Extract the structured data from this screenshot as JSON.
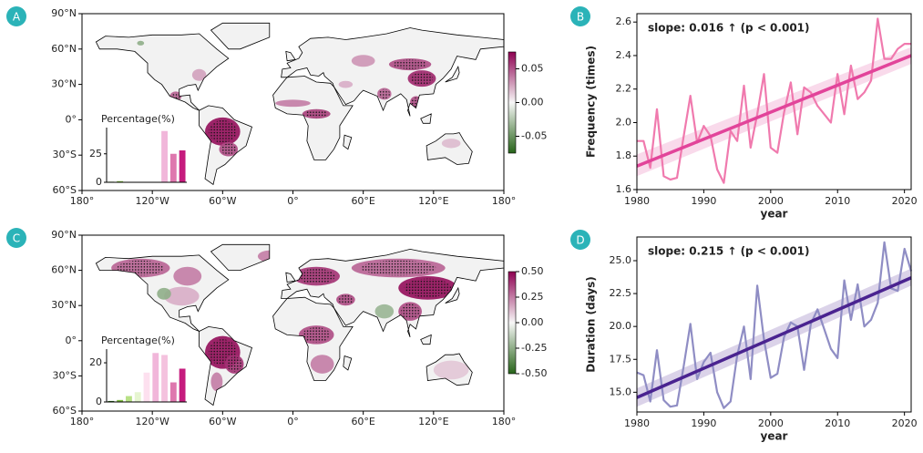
{
  "chart_data": [
    {
      "type": "map",
      "panel": "A",
      "xlim": [
        -180,
        180
      ],
      "ylim": [
        -60,
        90
      ],
      "xticks": [
        {
          "value": -180,
          "label": "180°"
        },
        {
          "value": -120,
          "label": "120°W"
        },
        {
          "value": -60,
          "label": "60°W"
        },
        {
          "value": 0,
          "label": "0°"
        },
        {
          "value": 60,
          "label": "60°E"
        },
        {
          "value": 120,
          "label": "120°E"
        },
        {
          "value": 180,
          "label": "180°"
        }
      ],
      "yticks": [
        {
          "value": 90,
          "label": "90°N"
        },
        {
          "value": 60,
          "label": "60°N"
        },
        {
          "value": 30,
          "label": "30°N"
        },
        {
          "value": 0,
          "label": "0°"
        },
        {
          "value": -30,
          "label": "30°S"
        },
        {
          "value": -60,
          "label": "60°S"
        }
      ],
      "colorbar": {
        "lim": [
          -0.075,
          0.075
        ],
        "colors": [
          "#276419",
          "#f7f7f7",
          "#8e0152"
        ],
        "ticks": [
          {
            "value": 0.05,
            "label": "0.05"
          },
          {
            "value": 0,
            "label": "0.00"
          },
          {
            "value": -0.05,
            "label": "-0.05"
          }
        ]
      }
    },
    {
      "type": "bar",
      "title": "Percentage(%)",
      "values": [
        0.5,
        1,
        0,
        0,
        0,
        0,
        45,
        25,
        28
      ],
      "colors": [
        "#4d9221",
        "#7fbc41",
        "#b8e186",
        "#e6f5d0",
        "#fde0ef",
        "#fde0ef",
        "#f1b6da",
        "#de77ae",
        "#c51b7d"
      ],
      "ylim": [
        0,
        48
      ],
      "yticks": [
        0,
        25
      ]
    },
    {
      "type": "line",
      "panel": "B",
      "xlabel": "year",
      "ylabel": "Frequency (times)",
      "annotation": "slope: 0.016 ↑ (p < 0.001)",
      "x": [
        1980,
        1981,
        1982,
        1983,
        1984,
        1985,
        1986,
        1987,
        1988,
        1989,
        1990,
        1991,
        1992,
        1993,
        1994,
        1995,
        1996,
        1997,
        1998,
        1999,
        2000,
        2001,
        2002,
        2003,
        2004,
        2005,
        2006,
        2007,
        2008,
        2009,
        2010,
        2011,
        2012,
        2013,
        2014,
        2015,
        2016,
        2017,
        2018,
        2019,
        2020,
        2021
      ],
      "values": [
        1.89,
        1.89,
        1.73,
        2.08,
        1.68,
        1.66,
        1.67,
        1.92,
        2.16,
        1.88,
        1.98,
        1.92,
        1.72,
        1.64,
        1.95,
        1.89,
        2.22,
        1.85,
        2.05,
        2.29,
        1.85,
        1.82,
        2.06,
        2.24,
        1.93,
        2.21,
        2.18,
        2.1,
        2.05,
        2.0,
        2.29,
        2.05,
        2.34,
        2.14,
        2.18,
        2.25,
        2.62,
        2.38,
        2.38,
        2.44,
        2.47,
        2.47
      ],
      "color": "#f07aae",
      "trend": {
        "x": [
          1980,
          2021
        ],
        "values": [
          1.74,
          2.4
        ],
        "band_low": [
          1.68,
          2.35
        ],
        "band_high": [
          1.81,
          2.45
        ],
        "color": "#e2449a"
      },
      "xlim": [
        1980,
        2021
      ],
      "ylim": [
        1.6,
        2.65
      ],
      "xticks": [
        1980,
        1990,
        2000,
        2010,
        2020
      ],
      "yticks": [
        {
          "value": 1.6,
          "label": "1.6"
        },
        {
          "value": 1.8,
          "label": "1.8"
        },
        {
          "value": 2.0,
          "label": "2.0"
        },
        {
          "value": 2.2,
          "label": "2.2"
        },
        {
          "value": 2.4,
          "label": "2.4"
        },
        {
          "value": 2.6,
          "label": "2.6"
        }
      ]
    },
    {
      "type": "map",
      "panel": "C",
      "xlim": [
        -180,
        180
      ],
      "ylim": [
        -60,
        90
      ],
      "xticks": [
        {
          "value": -180,
          "label": "180°"
        },
        {
          "value": -120,
          "label": "120°W"
        },
        {
          "value": -60,
          "label": "60°W"
        },
        {
          "value": 0,
          "label": "0°"
        },
        {
          "value": 60,
          "label": "60°E"
        },
        {
          "value": 120,
          "label": "120°E"
        },
        {
          "value": 180,
          "label": "180°"
        }
      ],
      "yticks": [
        {
          "value": 90,
          "label": "90°N"
        },
        {
          "value": 60,
          "label": "60°N"
        },
        {
          "value": 30,
          "label": "30°N"
        },
        {
          "value": 0,
          "label": "0°"
        },
        {
          "value": -30,
          "label": "30°S"
        },
        {
          "value": -60,
          "label": "60°S"
        }
      ],
      "colorbar": {
        "lim": [
          -0.5,
          0.5
        ],
        "colors": [
          "#276419",
          "#f7f7f7",
          "#8e0152"
        ],
        "ticks": [
          {
            "value": 0.5,
            "label": "0.50"
          },
          {
            "value": 0.25,
            "label": "0.25"
          },
          {
            "value": 0,
            "label": "0.00"
          },
          {
            "value": -0.25,
            "label": "-0.25"
          },
          {
            "value": -0.5,
            "label": "-0.50"
          }
        ]
      }
    },
    {
      "type": "bar",
      "title": "Percentage(%)",
      "values": [
        0.5,
        1,
        3,
        5,
        15,
        25,
        24,
        10,
        17
      ],
      "colors": [
        "#276419",
        "#7fbc41",
        "#b8e186",
        "#e6f5d0",
        "#fde0ef",
        "#f1b6da",
        "#f4c2de",
        "#de77ae",
        "#c51b7d"
      ],
      "ylim": [
        0,
        27
      ],
      "yticks": [
        0,
        20
      ]
    },
    {
      "type": "line",
      "panel": "D",
      "xlabel": "year",
      "ylabel": "Duration (days)",
      "annotation": "slope: 0.215 ↑ (p < 0.001)",
      "x": [
        1980,
        1981,
        1982,
        1983,
        1984,
        1985,
        1986,
        1987,
        1988,
        1989,
        1990,
        1991,
        1992,
        1993,
        1994,
        1995,
        1996,
        1997,
        1998,
        1999,
        2000,
        2001,
        2002,
        2003,
        2004,
        2005,
        2006,
        2007,
        2008,
        2009,
        2010,
        2011,
        2012,
        2013,
        2014,
        2015,
        2016,
        2017,
        2018,
        2019,
        2020,
        2021
      ],
      "values": [
        16.5,
        16.3,
        14.3,
        18.2,
        14.4,
        13.9,
        14.0,
        17.0,
        20.2,
        16.0,
        17.3,
        18.0,
        15.0,
        13.8,
        14.3,
        17.8,
        20.0,
        16.0,
        23.1,
        19.0,
        16.1,
        16.4,
        19.2,
        20.3,
        20.0,
        16.7,
        20.2,
        21.3,
        19.8,
        18.3,
        17.6,
        23.5,
        20.5,
        23.2,
        20.0,
        20.5,
        21.8,
        26.4,
        22.9,
        22.7,
        25.9,
        24.2
      ],
      "color": "#8f8dc4",
      "trend": {
        "x": [
          1980,
          2021
        ],
        "values": [
          14.6,
          23.7
        ],
        "band_low": [
          13.9,
          23.1
        ],
        "band_high": [
          15.3,
          24.4
        ],
        "color": "#4a2390"
      },
      "xlim": [
        1980,
        2021
      ],
      "ylim": [
        13.5,
        26.8
      ],
      "xticks": [
        1980,
        1990,
        2000,
        2010,
        2020
      ],
      "yticks": [
        {
          "value": 15,
          "label": "15.0"
        },
        {
          "value": 17.5,
          "label": "17.5"
        },
        {
          "value": 20,
          "label": "20.0"
        },
        {
          "value": 22.5,
          "label": "22.5"
        },
        {
          "value": 25,
          "label": "25.0"
        }
      ]
    }
  ]
}
